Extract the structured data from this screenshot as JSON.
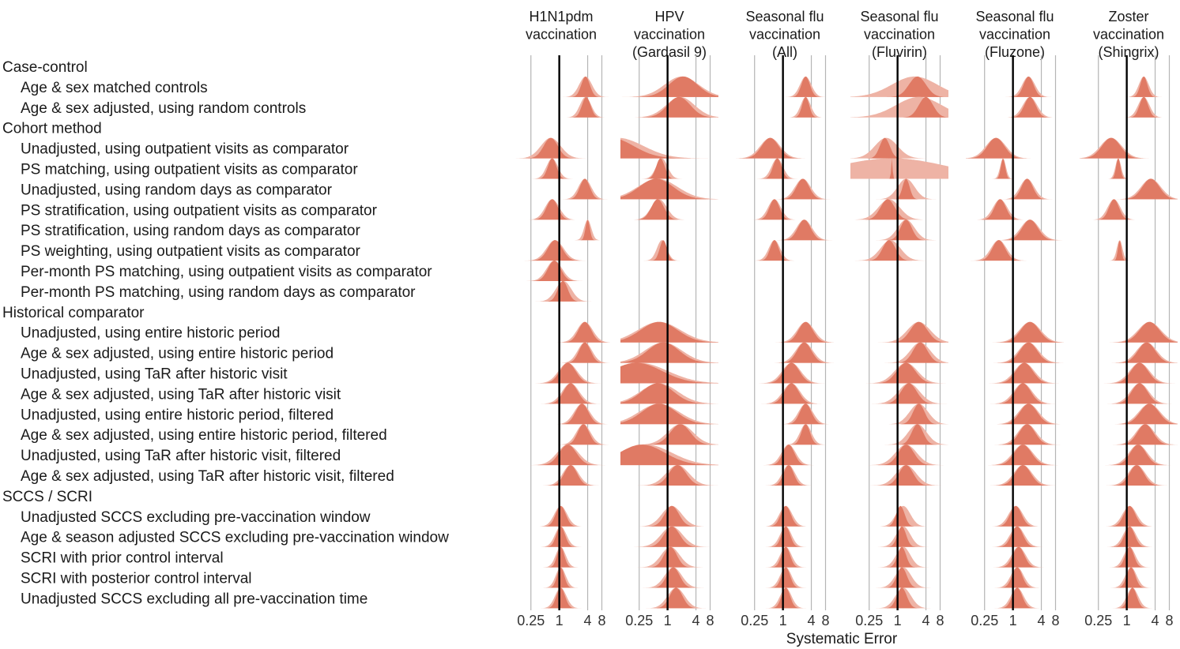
{
  "chart_data": {
    "type": "ridgeline",
    "xlabel": "Systematic Error",
    "x_scale": "log2",
    "x_ticks": [
      0.25,
      1,
      4,
      8
    ],
    "x_tick_labels": [
      "0.25",
      "1",
      "4",
      "8"
    ],
    "x_range": [
      0.1,
      12
    ],
    "gridlines": [
      0.25,
      4,
      8
    ],
    "reference_line": 1,
    "colors": {
      "dark": "#e07a64",
      "light": "#eeb3a5",
      "grid": "#b5b5b5",
      "ref": "#000000"
    },
    "panels": [
      {
        "title_lines": [
          "H1N1pdm",
          "vaccination"
        ]
      },
      {
        "title_lines": [
          "HPV",
          "vaccination",
          "(Gardasil 9)"
        ]
      },
      {
        "title_lines": [
          "Seasonal flu",
          "vaccination",
          "(All)"
        ]
      },
      {
        "title_lines": [
          "Seasonal flu",
          "vaccination",
          "(Fluvirin)"
        ]
      },
      {
        "title_lines": [
          "Seasonal flu",
          "vaccination",
          "(Fluzone)"
        ]
      },
      {
        "title_lines": [
          "Zoster",
          "vaccination",
          "(Shingrix)"
        ]
      }
    ],
    "rows": [
      {
        "label": "Case-control",
        "header": true
      },
      {
        "label": "Age & sex matched controls",
        "header": false
      },
      {
        "label": "Age & sex adjusted, using random controls",
        "header": false
      },
      {
        "label": "Cohort method",
        "header": true
      },
      {
        "label": "Unadjusted, using outpatient visits as comparator",
        "header": false
      },
      {
        "label": "PS matching, using outpatient visits as comparator",
        "header": false
      },
      {
        "label": "Unadjusted, using random days as comparator",
        "header": false
      },
      {
        "label": "PS stratification, using outpatient visits as comparator",
        "header": false
      },
      {
        "label": "PS stratification, using random days as comparator",
        "header": false
      },
      {
        "label": "PS weighting, using outpatient visits as comparator",
        "header": false
      },
      {
        "label": "Per-month PS matching, using outpatient visits as comparator",
        "header": false
      },
      {
        "label": "Per-month PS matching, using random days as comparator",
        "header": false
      },
      {
        "label": "Historical comparator",
        "header": true
      },
      {
        "label": "Unadjusted, using entire historic period",
        "header": false
      },
      {
        "label": "Age & sex adjusted, using entire historic period",
        "header": false
      },
      {
        "label": "Unadjusted, using TaR after historic visit",
        "header": false
      },
      {
        "label": "Age & sex adjusted, using TaR after historic visit",
        "header": false
      },
      {
        "label": "Unadjusted, using entire historic period, filtered",
        "header": false
      },
      {
        "label": "Age & sex adjusted, using entire historic period, filtered",
        "header": false
      },
      {
        "label": "Unadjusted, using TaR after historic visit, filtered",
        "header": false
      },
      {
        "label": "Age & sex adjusted, using TaR after historic visit, filtered",
        "header": false
      },
      {
        "label": "SCCS / SCRI",
        "header": true
      },
      {
        "label": "Unadjusted SCCS excluding pre-vaccination window",
        "header": false
      },
      {
        "label": "Age & season adjusted SCCS excluding pre-vaccination window",
        "header": false
      },
      {
        "label": "SCRI with prior control interval",
        "header": false
      },
      {
        "label": "SCRI with posterior control interval",
        "header": false
      },
      {
        "label": "Unadjusted SCCS excluding all pre-vaccination time",
        "header": false
      }
    ],
    "series_note": "Each distribution: m = mean log2 systematic error, s = sd (log2 units); dark = point estimate distribution, light = wider band.",
    "distributions": [
      [
        null,
        {
          "m": 1.85,
          "s": 0.3,
          "ls": 0.45,
          "lm": 1.85
        },
        {
          "m": 1.9,
          "s": 0.3,
          "ls": 0.4,
          "lm": 1.85
        },
        null,
        {
          "m": -0.6,
          "s": 0.5,
          "ls": 0.7,
          "lm": -0.6
        },
        {
          "m": -0.5,
          "s": 0.3,
          "ls": 0.4,
          "lm": -0.5
        },
        {
          "m": 1.8,
          "s": 0.35,
          "ls": 0.45,
          "lm": 1.8
        },
        {
          "m": -0.5,
          "s": 0.4,
          "ls": 0.5,
          "lm": -0.5
        },
        {
          "m": 2.0,
          "s": 0.15,
          "ls": 0.25,
          "lm": 2.0
        },
        {
          "m": -0.3,
          "s": 0.5,
          "ls": 0.6,
          "lm": -0.3
        },
        {
          "m": -0.35,
          "s": 0.45,
          "ls": 0.55,
          "lm": -0.35
        },
        {
          "m": 0.25,
          "s": 0.35,
          "ls": 0.55,
          "lm": 0.3
        },
        null,
        {
          "m": 1.8,
          "s": 0.45,
          "ls": 0.55,
          "lm": 1.8
        },
        {
          "m": 1.8,
          "s": 0.4,
          "ls": 0.5,
          "lm": 1.8
        },
        {
          "m": 0.6,
          "s": 0.55,
          "ls": 0.65,
          "lm": 0.6
        },
        {
          "m": 0.8,
          "s": 0.5,
          "ls": 0.6,
          "lm": 0.8
        },
        {
          "m": 1.6,
          "s": 0.45,
          "ls": 0.55,
          "lm": 1.6
        },
        {
          "m": 1.7,
          "s": 0.4,
          "ls": 0.5,
          "lm": 1.7
        },
        {
          "m": 0.6,
          "s": 0.6,
          "ls": 0.75,
          "lm": 0.6
        },
        {
          "m": 0.8,
          "s": 0.45,
          "ls": 0.55,
          "lm": 0.8
        },
        null,
        {
          "m": 0.1,
          "s": 0.35,
          "ls": 0.45,
          "lm": 0.1
        },
        {
          "m": 0.1,
          "s": 0.3,
          "ls": 0.4,
          "lm": 0.1
        },
        {
          "m": 0.1,
          "s": 0.25,
          "ls": 0.35,
          "lm": 0.1
        },
        {
          "m": 0.1,
          "s": 0.25,
          "ls": 0.35,
          "lm": 0.1
        },
        {
          "m": 0.1,
          "s": 0.3,
          "ls": 0.4,
          "lm": 0.1
        }
      ],
      [
        null,
        {
          "m": 1.1,
          "s": 1.0,
          "ls": 1.2,
          "lm": 1.0
        },
        {
          "m": 0.8,
          "s": 0.8,
          "ls": 1.0,
          "lm": 0.9
        },
        null,
        {
          "m": -4.0,
          "s": 1.6,
          "ls": 1.8,
          "lm": -3.5
        },
        {
          "m": -0.5,
          "s": 0.3,
          "ls": 0.4,
          "lm": -0.4
        },
        {
          "m": -0.8,
          "s": 1.2,
          "ls": 1.4,
          "lm": -0.7
        },
        {
          "m": -0.7,
          "s": 0.45,
          "ls": 0.55,
          "lm": -0.6
        },
        null,
        {
          "m": -0.3,
          "s": 0.25,
          "ls": 0.35,
          "lm": -0.4
        },
        null,
        null,
        null,
        {
          "m": -0.6,
          "s": 1.3,
          "ls": 1.5,
          "lm": -0.6
        },
        {
          "m": -0.3,
          "s": 1.1,
          "ls": 1.3,
          "lm": -0.3
        },
        {
          "m": -2.2,
          "s": 1.8,
          "ls": 2.0,
          "lm": -2.0
        },
        {
          "m": -0.7,
          "s": 1.1,
          "ls": 1.3,
          "lm": -0.6
        },
        {
          "m": -0.6,
          "s": 1.2,
          "ls": 1.4,
          "lm": -0.6
        },
        {
          "m": 0.9,
          "s": 0.7,
          "ls": 0.9,
          "lm": 0.9
        },
        {
          "m": -1.8,
          "s": 1.6,
          "ls": 1.8,
          "lm": -1.5
        },
        {
          "m": 0.7,
          "s": 0.6,
          "ls": 0.8,
          "lm": 0.7
        },
        null,
        {
          "m": 0.3,
          "s": 0.5,
          "ls": 0.7,
          "lm": 0.3
        },
        {
          "m": 0.3,
          "s": 0.55,
          "ls": 0.75,
          "lm": 0.3
        },
        {
          "m": 0.2,
          "s": 0.45,
          "ls": 0.65,
          "lm": 0.2
        },
        {
          "m": 0.4,
          "s": 0.45,
          "ls": 0.6,
          "lm": 0.4
        },
        {
          "m": 0.6,
          "s": 0.45,
          "ls": 0.6,
          "lm": 0.6
        }
      ],
      [
        null,
        {
          "m": 1.6,
          "s": 0.3,
          "ls": 0.4,
          "lm": 1.6
        },
        {
          "m": 1.6,
          "s": 0.25,
          "ls": 0.35,
          "lm": 1.6
        },
        null,
        {
          "m": -0.9,
          "s": 0.6,
          "ls": 0.7,
          "lm": -0.9
        },
        {
          "m": -0.4,
          "s": 0.3,
          "ls": 0.4,
          "lm": -0.4
        },
        {
          "m": 1.4,
          "s": 0.45,
          "ls": 0.55,
          "lm": 1.4
        },
        {
          "m": -0.6,
          "s": 0.35,
          "ls": 0.45,
          "lm": -0.6
        },
        {
          "m": 1.5,
          "s": 0.45,
          "ls": 0.55,
          "lm": 1.5
        },
        {
          "m": -0.6,
          "s": 0.3,
          "ls": 0.4,
          "lm": -0.6
        },
        null,
        null,
        null,
        {
          "m": 1.6,
          "s": 0.5,
          "ls": 0.6,
          "lm": 1.6
        },
        {
          "m": 1.5,
          "s": 0.5,
          "ls": 0.6,
          "lm": 1.5
        },
        {
          "m": 0.6,
          "s": 0.55,
          "ls": 0.65,
          "lm": 0.6
        },
        {
          "m": 0.6,
          "s": 0.5,
          "ls": 0.6,
          "lm": 0.6
        },
        {
          "m": 1.6,
          "s": 0.4,
          "ls": 0.5,
          "lm": 1.6
        },
        {
          "m": 1.6,
          "s": 0.3,
          "ls": 0.4,
          "lm": 1.6
        },
        {
          "m": 0.4,
          "s": 0.4,
          "ls": 0.5,
          "lm": 0.4
        },
        {
          "m": 0.4,
          "s": 0.35,
          "ls": 0.45,
          "lm": 0.4
        },
        null,
        {
          "m": 0.2,
          "s": 0.35,
          "ls": 0.45,
          "lm": 0.2
        },
        {
          "m": 0.2,
          "s": 0.3,
          "ls": 0.4,
          "lm": 0.2
        },
        {
          "m": 0.2,
          "s": 0.3,
          "ls": 0.4,
          "lm": 0.2
        },
        {
          "m": 0.2,
          "s": 0.3,
          "ls": 0.4,
          "lm": 0.2
        },
        {
          "m": 0.2,
          "s": 0.3,
          "ls": 0.4,
          "lm": 0.2
        }
      ],
      [
        null,
        {
          "m": 1.4,
          "s": 0.6,
          "ls": 1.6,
          "lm": 1.2
        },
        {
          "m": 2.0,
          "s": 0.5,
          "ls": 1.6,
          "lm": 1.5
        },
        null,
        {
          "m": -0.9,
          "s": 0.35,
          "ls": 0.8,
          "lm": -0.8
        },
        {
          "m": -0.4,
          "s": 0.05,
          "ls": 4.0,
          "lm": -0.4
        },
        {
          "m": 0.6,
          "s": 0.25,
          "ls": 0.6,
          "lm": 0.6
        },
        {
          "m": -0.7,
          "s": 0.5,
          "ls": 0.75,
          "lm": -0.6
        },
        {
          "m": 0.6,
          "s": 0.4,
          "ls": 0.6,
          "lm": 0.6
        },
        {
          "m": -0.6,
          "s": 0.45,
          "ls": 0.7,
          "lm": -0.5
        },
        null,
        null,
        null,
        {
          "m": 1.5,
          "s": 0.6,
          "ls": 0.8,
          "lm": 1.5
        },
        {
          "m": 1.6,
          "s": 0.5,
          "ls": 0.7,
          "lm": 1.6
        },
        {
          "m": 0.6,
          "s": 0.65,
          "ls": 0.8,
          "lm": 0.6
        },
        {
          "m": 0.8,
          "s": 0.55,
          "ls": 0.75,
          "lm": 0.8
        },
        {
          "m": 1.5,
          "s": 0.4,
          "ls": 0.65,
          "lm": 1.5
        },
        {
          "m": 1.4,
          "s": 0.4,
          "ls": 0.65,
          "lm": 1.4
        },
        {
          "m": 0.6,
          "s": 0.55,
          "ls": 0.75,
          "lm": 0.6
        },
        {
          "m": 0.6,
          "s": 0.5,
          "ls": 0.7,
          "lm": 0.6
        },
        null,
        {
          "m": 0.2,
          "s": 0.3,
          "ls": 0.5,
          "lm": 0.4
        },
        {
          "m": 0.3,
          "s": 0.3,
          "ls": 0.5,
          "lm": 0.4
        },
        {
          "m": 0.3,
          "s": 0.3,
          "ls": 0.5,
          "lm": 0.4
        },
        {
          "m": 0.3,
          "s": 0.35,
          "ls": 0.55,
          "lm": 0.4
        },
        {
          "m": 0.3,
          "s": 0.35,
          "ls": 0.55,
          "lm": 0.4
        }
      ],
      [
        null,
        {
          "m": 1.1,
          "s": 0.35,
          "ls": 0.45,
          "lm": 1.1
        },
        {
          "m": 1.2,
          "s": 0.4,
          "ls": 0.5,
          "lm": 1.2
        },
        null,
        {
          "m": -1.2,
          "s": 0.6,
          "ls": 0.7,
          "lm": -1.2
        },
        {
          "m": -0.7,
          "s": 0.15,
          "ls": 0.2,
          "lm": -0.7
        },
        {
          "m": 1.0,
          "s": 0.4,
          "ls": 0.5,
          "lm": 1.0
        },
        {
          "m": -0.9,
          "s": 0.4,
          "ls": 0.5,
          "lm": -0.9
        },
        {
          "m": 1.2,
          "s": 0.55,
          "ls": 0.65,
          "lm": 1.2
        },
        {
          "m": -1.0,
          "s": 0.45,
          "ls": 0.55,
          "lm": -1.0
        },
        null,
        null,
        null,
        {
          "m": 1.2,
          "s": 0.65,
          "ls": 0.75,
          "lm": 1.2
        },
        {
          "m": 1.1,
          "s": 0.6,
          "ls": 0.7,
          "lm": 1.1
        },
        {
          "m": 0.8,
          "s": 0.6,
          "ls": 0.7,
          "lm": 0.8
        },
        {
          "m": 0.7,
          "s": 0.55,
          "ls": 0.65,
          "lm": 0.7
        },
        {
          "m": 1.1,
          "s": 0.6,
          "ls": 0.7,
          "lm": 1.1
        },
        {
          "m": 1.0,
          "s": 0.55,
          "ls": 0.65,
          "lm": 1.0
        },
        {
          "m": 0.7,
          "s": 0.6,
          "ls": 0.7,
          "lm": 0.7
        },
        {
          "m": 0.7,
          "s": 0.55,
          "ls": 0.65,
          "lm": 0.7
        },
        null,
        {
          "m": 0.2,
          "s": 0.4,
          "ls": 0.5,
          "lm": 0.2
        },
        {
          "m": 0.3,
          "s": 0.4,
          "ls": 0.5,
          "lm": 0.3
        },
        {
          "m": 0.4,
          "s": 0.4,
          "ls": 0.5,
          "lm": 0.4
        },
        {
          "m": 0.3,
          "s": 0.35,
          "ls": 0.45,
          "lm": 0.3
        },
        {
          "m": 0.3,
          "s": 0.35,
          "ls": 0.45,
          "lm": 0.3
        }
      ],
      [
        null,
        {
          "m": 1.2,
          "s": 0.25,
          "ls": 0.35,
          "lm": 1.2
        },
        {
          "m": 1.2,
          "s": 0.3,
          "ls": 0.4,
          "lm": 1.2
        },
        null,
        {
          "m": -1.1,
          "s": 0.65,
          "ls": 0.75,
          "lm": -1.1
        },
        {
          "m": -0.6,
          "s": 0.15,
          "ls": 0.2,
          "lm": -0.6
        },
        {
          "m": 1.7,
          "s": 0.6,
          "ls": 0.7,
          "lm": 1.7
        },
        {
          "m": -0.9,
          "s": 0.35,
          "ls": 0.45,
          "lm": -0.9
        },
        null,
        {
          "m": -0.5,
          "s": 0.12,
          "ls": 0.2,
          "lm": -0.5
        },
        null,
        null,
        null,
        {
          "m": 1.6,
          "s": 0.7,
          "ls": 0.8,
          "lm": 1.6
        },
        {
          "m": 1.4,
          "s": 0.6,
          "ls": 0.7,
          "lm": 1.4
        },
        {
          "m": 0.9,
          "s": 0.6,
          "ls": 0.7,
          "lm": 0.9
        },
        {
          "m": 0.9,
          "s": 0.55,
          "ls": 0.65,
          "lm": 0.9
        },
        {
          "m": 1.6,
          "s": 0.65,
          "ls": 0.75,
          "lm": 1.6
        },
        {
          "m": 1.3,
          "s": 0.55,
          "ls": 0.65,
          "lm": 1.3
        },
        {
          "m": 0.8,
          "s": 0.55,
          "ls": 0.65,
          "lm": 0.8
        },
        {
          "m": 0.7,
          "s": 0.5,
          "ls": 0.6,
          "lm": 0.7
        },
        null,
        {
          "m": 0.2,
          "s": 0.4,
          "ls": 0.5,
          "lm": 0.2
        },
        {
          "m": 0.2,
          "s": 0.35,
          "ls": 0.45,
          "lm": 0.2
        },
        {
          "m": 0.2,
          "s": 0.3,
          "ls": 0.4,
          "lm": 0.2
        },
        {
          "m": 0.3,
          "s": 0.3,
          "ls": 0.4,
          "lm": 0.3
        },
        {
          "m": 0.4,
          "s": 0.3,
          "ls": 0.4,
          "lm": 0.4
        }
      ]
    ]
  }
}
